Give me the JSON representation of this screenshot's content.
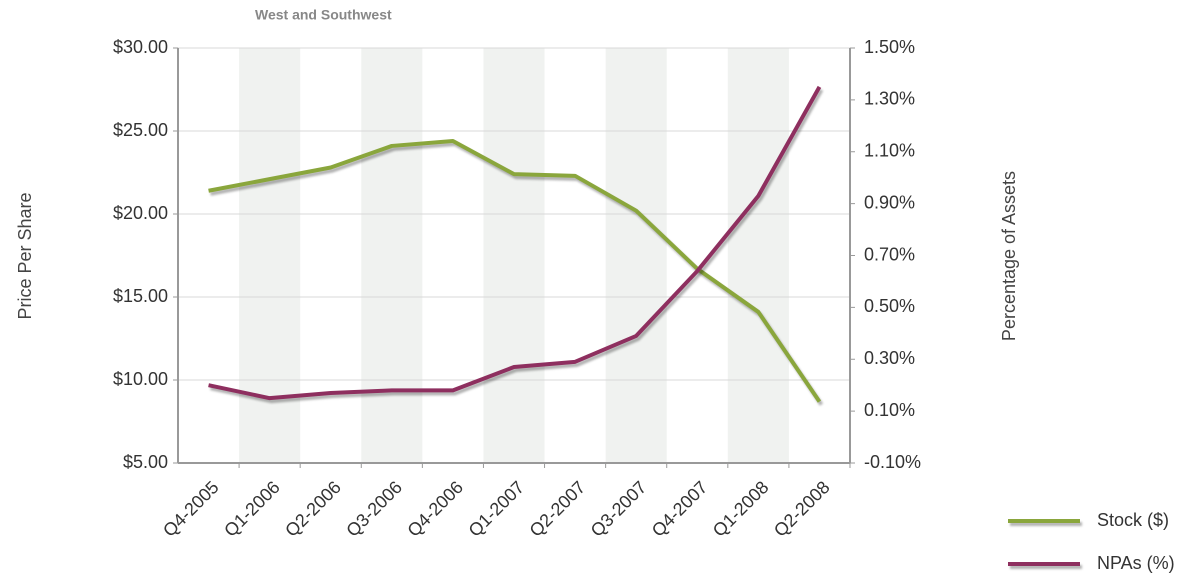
{
  "chart_data": {
    "type": "line",
    "title": "West and Southwest",
    "y_label": "Price Per Share",
    "y2_label": "Percentage of Assets",
    "categories": [
      "Q4-2005",
      "Q1-2006",
      "Q2-2006",
      "Q3-2006",
      "Q4-2006",
      "Q1-2007",
      "Q2-2007",
      "Q3-2007",
      "Q4-2007",
      "Q1-2008",
      "Q2-2008"
    ],
    "series": [
      {
        "name": "Stock ($)",
        "color": "#8aa63c",
        "values": [
          21.4,
          22.1,
          22.8,
          24.1,
          24.4,
          22.4,
          22.3,
          20.2,
          16.7,
          14.1,
          8.7
        ]
      },
      {
        "name": "NPAs (%)",
        "color": "#8e2f5f",
        "axis": "y2",
        "values": [
          0.2,
          0.15,
          0.17,
          0.18,
          0.18,
          0.27,
          0.29,
          0.39,
          0.64,
          0.93,
          1.35
        ]
      }
    ],
    "ylim": [
      5,
      30
    ],
    "yticks": [
      {
        "value": 5,
        "label": "$5.00"
      },
      {
        "value": 10,
        "label": "$10.00"
      },
      {
        "value": 15,
        "label": "$15.00"
      },
      {
        "value": 20,
        "label": "$20.00"
      },
      {
        "value": 25,
        "label": "$25.00"
      },
      {
        "value": 30,
        "label": "$30.00"
      }
    ],
    "y2lim": [
      -0.1,
      1.5
    ],
    "y2ticks": [
      {
        "value": -0.1,
        "label": "-0.10%"
      },
      {
        "value": 0.1,
        "label": "0.10%"
      },
      {
        "value": 0.3,
        "label": "0.30%"
      },
      {
        "value": 0.5,
        "label": "0.50%"
      },
      {
        "value": 0.7,
        "label": "0.70%"
      },
      {
        "value": 0.9,
        "label": "0.90%"
      },
      {
        "value": 1.1,
        "label": "1.10%"
      },
      {
        "value": 1.3,
        "label": "1.30%"
      },
      {
        "value": 1.5,
        "label": "1.50%"
      }
    ],
    "grid": true
  }
}
